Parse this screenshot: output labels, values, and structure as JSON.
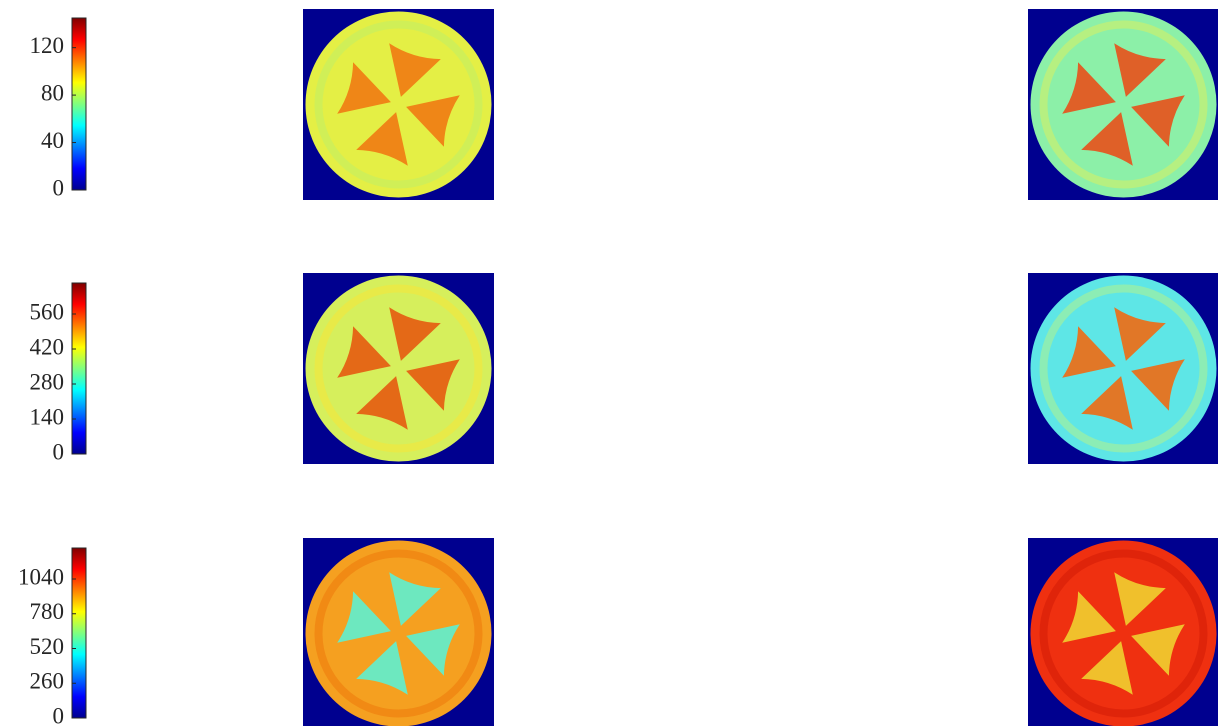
{
  "chart_data": [
    {
      "type": "colorbar",
      "ylim": [
        0,
        145
      ],
      "yticks": [
        0,
        40,
        80,
        120
      ]
    },
    {
      "type": "colorbar",
      "ylim": [
        0,
        684
      ],
      "yticks": [
        0,
        140,
        280,
        420,
        560
      ]
    },
    {
      "type": "colorbar",
      "ylim": [
        0,
        1272
      ],
      "yticks": [
        0,
        260,
        520,
        780,
        1040
      ]
    }
  ]
}
